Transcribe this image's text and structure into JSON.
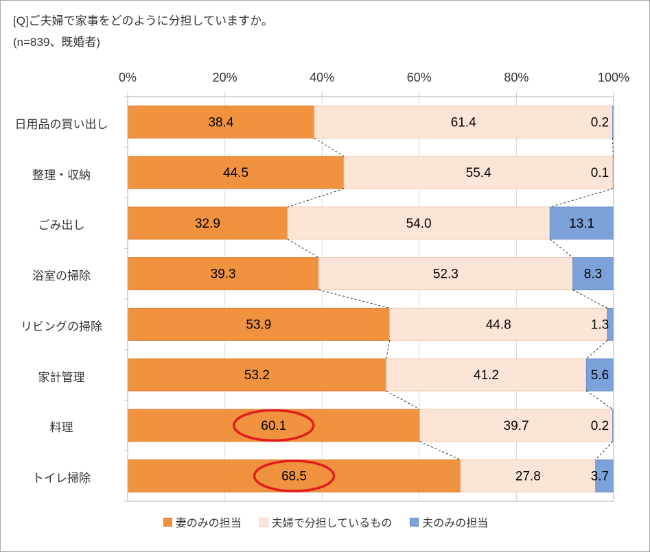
{
  "title": "[Q]ご夫婦で家事をどのように分担していますか。",
  "subtitle": "(n=839、既婚者)",
  "axis": {
    "ticks": [
      "0%",
      "20%",
      "40%",
      "60%",
      "80%",
      "100%"
    ]
  },
  "colors": {
    "grid": "#d9d9d9",
    "plot_border": "#bfbfbf",
    "tick": "#bfbfbf",
    "connector": "#262626",
    "highlight_red": "#e01e1e",
    "label_text": "#000000"
  },
  "chart_data": {
    "type": "bar",
    "orientation": "horizontal",
    "stacked": true,
    "title": "[Q]ご夫婦で家事をどのように分担していますか。",
    "subtitle": "(n=839、既婚者)",
    "xlim": [
      0,
      100
    ],
    "xticks": [
      0,
      20,
      40,
      60,
      80,
      100
    ],
    "grid": true,
    "legend_position": "bottom",
    "value_format": "one-decimal",
    "categories": [
      "日用品の買い出し",
      "整理・収納",
      "ごみ出し",
      "浴室の掃除",
      "リビングの掃除",
      "家計管理",
      "料理",
      "トイレ掃除"
    ],
    "series": [
      {
        "name": "妻のみの担当",
        "color": "#f0923e",
        "border": "#db7e2d",
        "values": [
          38.4,
          44.5,
          32.9,
          39.3,
          53.9,
          53.2,
          60.1,
          68.5
        ]
      },
      {
        "name": "夫婦で分担しているもの",
        "color": "#fce4d6",
        "border": "#f0c7ab",
        "values": [
          61.4,
          55.4,
          54.0,
          52.3,
          44.8,
          41.2,
          39.7,
          27.8
        ]
      },
      {
        "name": "夫のみの担当",
        "color": "#7da2d9",
        "border": "#6a90c9",
        "values": [
          0.2,
          0.1,
          13.1,
          8.3,
          1.3,
          5.6,
          0.2,
          3.7
        ]
      }
    ],
    "annotations": {
      "circled": [
        {
          "category": "料理",
          "series": "妻のみの担当",
          "value": 60.1
        },
        {
          "category": "トイレ掃除",
          "series": "妻のみの担当",
          "value": 68.5
        }
      ]
    }
  }
}
